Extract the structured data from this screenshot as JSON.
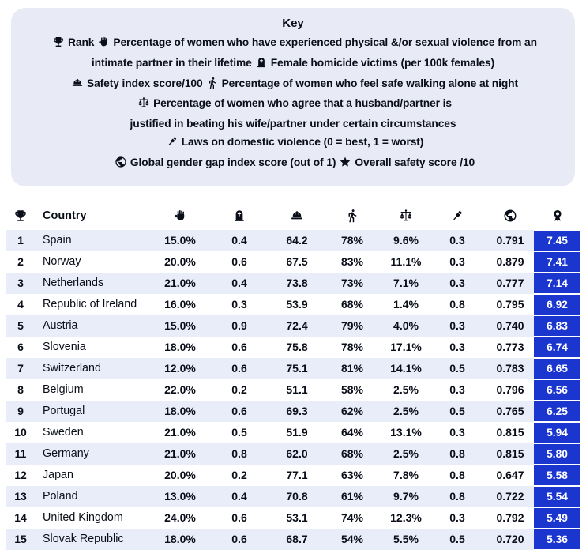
{
  "colors": {
    "badge_blue": "#1b35cf",
    "row_stripe": "#e9ecf9",
    "key_bg": "#e8eaf6",
    "text": "#0a0e18"
  },
  "key": {
    "title": "Key",
    "lines": [
      [
        {
          "icon": "trophy-icon"
        },
        {
          "text": "Rank"
        },
        {
          "icon": "fist-icon"
        },
        {
          "text": "Percentage of women who have experienced physical &/or sexual violence from an"
        }
      ],
      [
        {
          "text": "intimate partner in their lifetime"
        },
        {
          "icon": "tombstone-icon"
        },
        {
          "text": "Female homicide victims (per 100k females)"
        }
      ],
      [
        {
          "icon": "hardhat-icon"
        },
        {
          "text": "Safety index score/100"
        },
        {
          "icon": "walking-person-icon"
        },
        {
          "text": "Percentage of women who feel safe walking alone at night"
        }
      ],
      [
        {
          "icon": "scales-icon"
        },
        {
          "text": "Percentage of women who agree that a husband/partner is"
        }
      ],
      [
        {
          "text": "justified in beating his wife/partner under certain circumstances"
        }
      ],
      [
        {
          "icon": "gavel-icon"
        },
        {
          "text": "Laws on domestic violence (0 = best, 1 = worst)"
        }
      ],
      [
        {
          "icon": "globe-icon"
        },
        {
          "text": "Global gender gap index score (out of 1)"
        },
        {
          "icon": "star-icon"
        },
        {
          "text": "Overall safety score /10"
        }
      ]
    ]
  },
  "table": {
    "columns": [
      {
        "key": "rank",
        "icon": "trophy-icon",
        "meaning": "Rank"
      },
      {
        "key": "country",
        "label": "Country"
      },
      {
        "key": "violence",
        "icon": "fist-icon",
        "meaning": "Percentage of women who have experienced physical &/or sexual violence from an intimate partner in their lifetime"
      },
      {
        "key": "homicide",
        "icon": "tombstone-icon",
        "meaning": "Female homicide victims (per 100k females)"
      },
      {
        "key": "safety_index",
        "icon": "hardhat-icon",
        "meaning": "Safety index score/100"
      },
      {
        "key": "walk_safe",
        "icon": "walking-person-icon",
        "meaning": "Percentage of women who feel safe walking alone at night"
      },
      {
        "key": "agree",
        "icon": "scales-icon",
        "meaning": "Percentage of women who agree that a husband/partner is justified in beating his wife/partner under certain circumstances"
      },
      {
        "key": "laws",
        "icon": "gavel-icon",
        "meaning": "Laws on domestic violence (0 = best, 1 = worst)"
      },
      {
        "key": "gender_gap",
        "icon": "globe-icon",
        "meaning": "Global gender gap index score (out of 1)"
      },
      {
        "key": "score",
        "icon": "medal-icon",
        "meaning": "Overall safety score /10"
      }
    ],
    "rows": [
      {
        "rank": "1",
        "country": "Spain",
        "violence": "15.0%",
        "homicide": "0.4",
        "safety_index": "64.2",
        "walk_safe": "78%",
        "agree": "9.6%",
        "laws": "0.3",
        "gender_gap": "0.791",
        "score": "7.45"
      },
      {
        "rank": "2",
        "country": "Norway",
        "violence": "20.0%",
        "homicide": "0.6",
        "safety_index": "67.5",
        "walk_safe": "83%",
        "agree": "11.1%",
        "laws": "0.3",
        "gender_gap": "0.879",
        "score": "7.41"
      },
      {
        "rank": "3",
        "country": "Netherlands",
        "violence": "21.0%",
        "homicide": "0.4",
        "safety_index": "73.8",
        "walk_safe": "73%",
        "agree": "7.1%",
        "laws": "0.3",
        "gender_gap": "0.777",
        "score": "7.14"
      },
      {
        "rank": "4",
        "country": "Republic of Ireland",
        "violence": "16.0%",
        "homicide": "0.3",
        "safety_index": "53.9",
        "walk_safe": "68%",
        "agree": "1.4%",
        "laws": "0.8",
        "gender_gap": "0.795",
        "score": "6.92"
      },
      {
        "rank": "5",
        "country": "Austria",
        "violence": "15.0%",
        "homicide": "0.9",
        "safety_index": "72.4",
        "walk_safe": "79%",
        "agree": "4.0%",
        "laws": "0.3",
        "gender_gap": "0.740",
        "score": "6.83"
      },
      {
        "rank": "6",
        "country": "Slovenia",
        "violence": "18.0%",
        "homicide": "0.6",
        "safety_index": "75.8",
        "walk_safe": "78%",
        "agree": "17.1%",
        "laws": "0.3",
        "gender_gap": "0.773",
        "score": "6.74"
      },
      {
        "rank": "7",
        "country": "Switzerland",
        "violence": "12.0%",
        "homicide": "0.6",
        "safety_index": "75.1",
        "walk_safe": "81%",
        "agree": "14.1%",
        "laws": "0.5",
        "gender_gap": "0.783",
        "score": "6.65"
      },
      {
        "rank": "8",
        "country": "Belgium",
        "violence": "22.0%",
        "homicide": "0.2",
        "safety_index": "51.1",
        "walk_safe": "58%",
        "agree": "2.5%",
        "laws": "0.3",
        "gender_gap": "0.796",
        "score": "6.56"
      },
      {
        "rank": "9",
        "country": "Portugal",
        "violence": "18.0%",
        "homicide": "0.6",
        "safety_index": "69.3",
        "walk_safe": "62%",
        "agree": "2.5%",
        "laws": "0.5",
        "gender_gap": "0.765",
        "score": "6.25"
      },
      {
        "rank": "10",
        "country": "Sweden",
        "violence": "21.0%",
        "homicide": "0.5",
        "safety_index": "51.9",
        "walk_safe": "64%",
        "agree": "13.1%",
        "laws": "0.3",
        "gender_gap": "0.815",
        "score": "5.94"
      },
      {
        "rank": "11",
        "country": "Germany",
        "violence": "21.0%",
        "homicide": "0.8",
        "safety_index": "62.0",
        "walk_safe": "68%",
        "agree": "2.5%",
        "laws": "0.8",
        "gender_gap": "0.815",
        "score": "5.80"
      },
      {
        "rank": "12",
        "country": "Japan",
        "violence": "20.0%",
        "homicide": "0.2",
        "safety_index": "77.1",
        "walk_safe": "63%",
        "agree": "7.8%",
        "laws": "0.8",
        "gender_gap": "0.647",
        "score": "5.58"
      },
      {
        "rank": "13",
        "country": "Poland",
        "violence": "13.0%",
        "homicide": "0.4",
        "safety_index": "70.8",
        "walk_safe": "61%",
        "agree": "9.7%",
        "laws": "0.8",
        "gender_gap": "0.722",
        "score": "5.54"
      },
      {
        "rank": "14",
        "country": "United Kingdom",
        "violence": "24.0%",
        "homicide": "0.6",
        "safety_index": "53.1",
        "walk_safe": "74%",
        "agree": "12.3%",
        "laws": "0.3",
        "gender_gap": "0.792",
        "score": "5.49"
      },
      {
        "rank": "15",
        "country": "Slovak Republic",
        "violence": "18.0%",
        "homicide": "0.6",
        "safety_index": "68.7",
        "walk_safe": "54%",
        "agree": "5.5%",
        "laws": "0.5",
        "gender_gap": "0.720",
        "score": "5.36"
      }
    ]
  }
}
